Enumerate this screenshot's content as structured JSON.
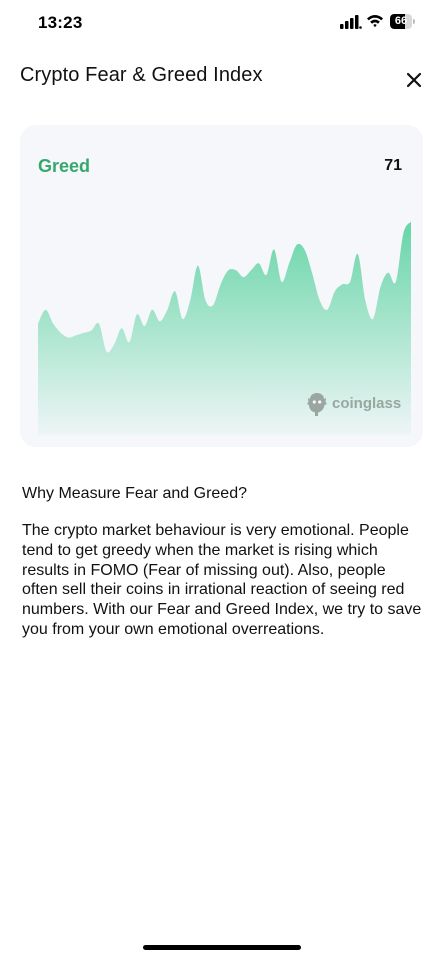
{
  "status_bar": {
    "time": "13:23",
    "battery_level": "66",
    "battery_fraction": 0.66
  },
  "header": {
    "title": "Crypto Fear & Greed Index",
    "close_icon": "close-icon"
  },
  "card": {
    "label": "Greed",
    "value": "71",
    "accent_color": "#36a86e",
    "watermark": "coinglass"
  },
  "chart_data": {
    "type": "area",
    "title": "",
    "xlabel": "",
    "ylabel": "",
    "ylim": [
      0,
      100
    ],
    "grid": false,
    "color": "#5fd3a3",
    "values": [
      48,
      54,
      48,
      44,
      42,
      43,
      44,
      45,
      48,
      36,
      39,
      46,
      40,
      52,
      47,
      54,
      49,
      54,
      62,
      50,
      58,
      73,
      58,
      56,
      65,
      71,
      71,
      68,
      71,
      74,
      69,
      80,
      66,
      74,
      82,
      80,
      70,
      58,
      54,
      62,
      65,
      66,
      78,
      58,
      50,
      64,
      70,
      66,
      87,
      92
    ]
  },
  "content": {
    "heading": "Why Measure Fear and Greed?",
    "body": "The crypto market behaviour is very emotional. People tend to get greedy when the market is rising which results in FOMO (Fear of missing out). Also, people often sell their coins in irrational reaction of seeing red numbers. With our Fear and Greed Index, we try to save you from your own emotional overreations."
  }
}
